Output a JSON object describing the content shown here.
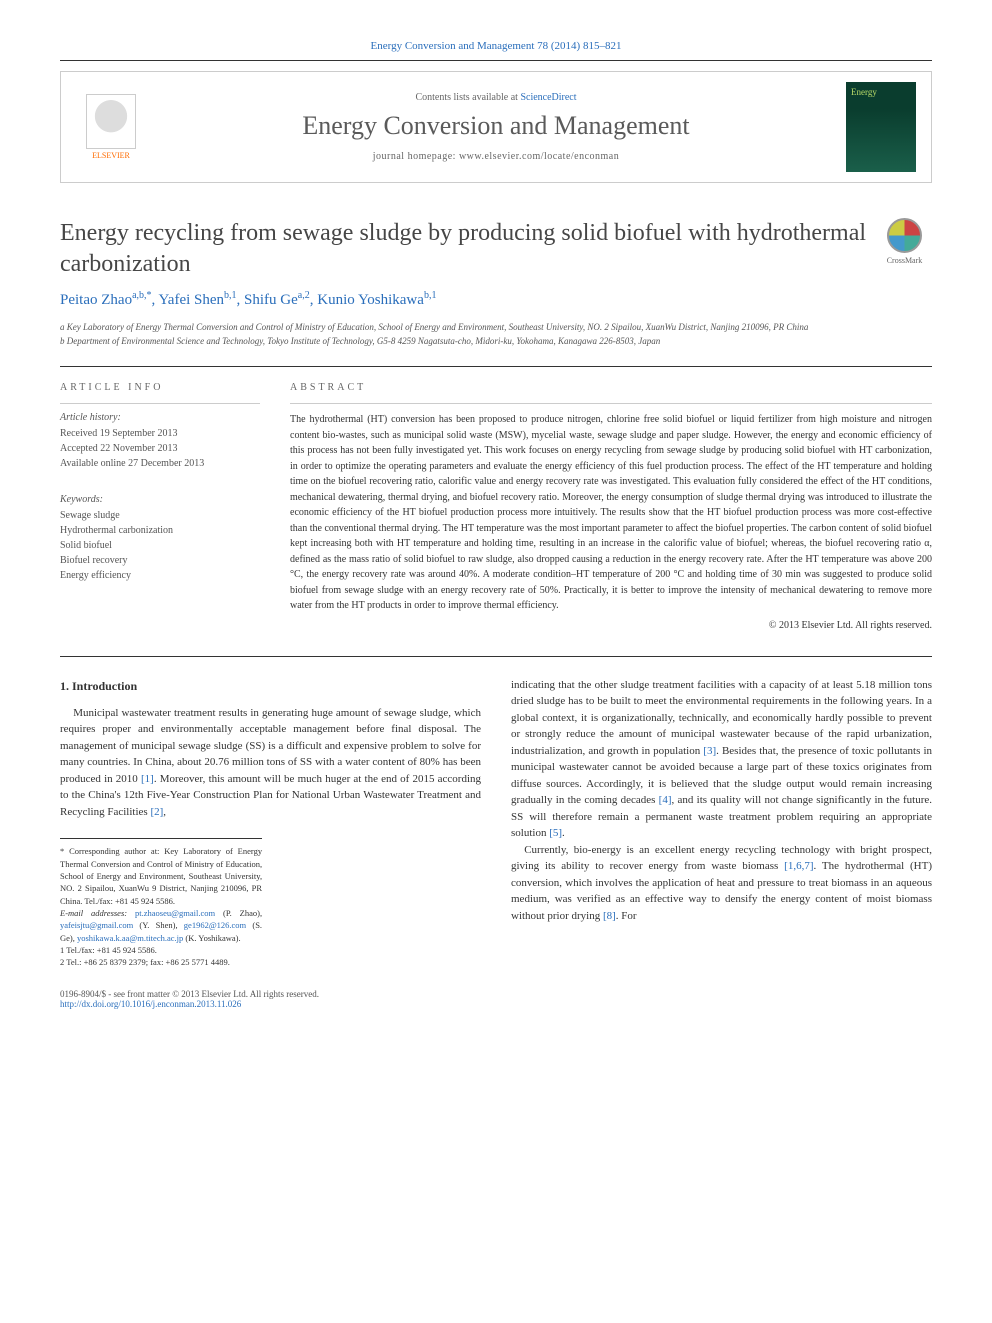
{
  "citation": "Energy Conversion and Management 78 (2014) 815–821",
  "header": {
    "contents_prefix": "Contents lists available at ",
    "contents_link": "ScienceDirect",
    "journal_name": "Energy Conversion and Management",
    "homepage_prefix": "journal homepage: ",
    "homepage_url": "www.elsevier.com/locate/enconman",
    "publisher": "ELSEVIER",
    "cover_text": "Energy"
  },
  "article": {
    "title": "Energy recycling from sewage sludge by producing solid biofuel with hydrothermal carbonization",
    "crossmark": "CrossMark",
    "authors_html": "Peitao Zhao",
    "author_sup1": "a,b,",
    "author_star": "*",
    "author2": ", Yafei Shen",
    "author_sup2": "b,1",
    "author3": ", Shifu Ge",
    "author_sup3": "a,2",
    "author4": ", Kunio Yoshikawa",
    "author_sup4": "b,1",
    "affil_a": "a Key Laboratory of Energy Thermal Conversion and Control of Ministry of Education, School of Energy and Environment, Southeast University, NO. 2 Sipailou, XuanWu District, Nanjing 210096, PR China",
    "affil_b": "b Department of Environmental Science and Technology, Tokyo Institute of Technology, G5-8 4259 Nagatsuta-cho, Midori-ku, Yokohama, Kanagawa 226-8503, Japan"
  },
  "info": {
    "header": "ARTICLE INFO",
    "history_label": "Article history:",
    "received": "Received 19 September 2013",
    "accepted": "Accepted 22 November 2013",
    "online": "Available online 27 December 2013",
    "keywords_label": "Keywords:",
    "keywords": [
      "Sewage sludge",
      "Hydrothermal carbonization",
      "Solid biofuel",
      "Biofuel recovery",
      "Energy efficiency"
    ]
  },
  "abstract": {
    "header": "ABSTRACT",
    "text": "The hydrothermal (HT) conversion has been proposed to produce nitrogen, chlorine free solid biofuel or liquid fertilizer from high moisture and nitrogen content bio-wastes, such as municipal solid waste (MSW), mycelial waste, sewage sludge and paper sludge. However, the energy and economic efficiency of this process has not been fully investigated yet. This work focuses on energy recycling from sewage sludge by producing solid biofuel with HT carbonization, in order to optimize the operating parameters and evaluate the energy efficiency of this fuel production process. The effect of the HT temperature and holding time on the biofuel recovering ratio, calorific value and energy recovery rate was investigated. This evaluation fully considered the effect of the HT conditions, mechanical dewatering, thermal drying, and biofuel recovery ratio. Moreover, the energy consumption of sludge thermal drying was introduced to illustrate the economic efficiency of the HT biofuel production process more intuitively. The results show that the HT biofuel production process was more cost-effective than the conventional thermal drying. The HT temperature was the most important parameter to affect the biofuel properties. The carbon content of solid biofuel kept increasing both with HT temperature and holding time, resulting in an increase in the calorific value of biofuel; whereas, the biofuel recovering ratio α, defined as the mass ratio of solid biofuel to raw sludge, also dropped causing a reduction in the energy recovery rate. After the HT temperature was above 200 °C, the energy recovery rate was around 40%. A moderate condition–HT temperature of 200 °C and holding time of 30 min was suggested to produce solid biofuel from sewage sludge with an energy recovery rate of 50%. Practically, it is better to improve the intensity of mechanical dewatering to remove more water from the HT products in order to improve thermal efficiency.",
    "copyright": "© 2013 Elsevier Ltd. All rights reserved."
  },
  "body": {
    "sec1_heading": "1. Introduction",
    "col1_p1": "Municipal wastewater treatment results in generating huge amount of sewage sludge, which requires proper and environmentally acceptable management before final disposal. The management of municipal sewage sludge (SS) is a difficult and expensive problem to solve for many countries. In China, about 20.76 million tons of SS with a water content of 80% has been produced in 2010 [1]. Moreover, this amount will be much huger at the end of 2015 according to the China's 12th Five-Year Construction Plan for National Urban Wastewater Treatment and Recycling Facilities [2],",
    "col2_p1": "indicating that the other sludge treatment facilities with a capacity of at least 5.18 million tons dried sludge has to be built to meet the environmental requirements in the following years. In a global context, it is organizationally, technically, and economically hardly possible to prevent or strongly reduce the amount of municipal wastewater because of the rapid urbanization, industrialization, and growth in population [3]. Besides that, the presence of toxic pollutants in municipal wastewater cannot be avoided because a large part of these toxics originates from diffuse sources. Accordingly, it is believed that the sludge output would remain increasing gradually in the coming decades [4], and its quality will not change significantly in the future. SS will therefore remain a permanent waste treatment problem requiring an appropriate solution [5].",
    "col2_p2": "Currently, bio-energy is an excellent energy recycling technology with bright prospect, giving its ability to recover energy from waste biomass [1,6,7]. The hydrothermal (HT) conversion, which involves the application of heat and pressure to treat biomass in an aqueous medium, was verified as an effective way to densify the energy content of moist biomass without prior drying [8]. For"
  },
  "footnotes": {
    "corr": "* Corresponding author at: Key Laboratory of Energy Thermal Conversion and Control of Ministry of Education, School of Energy and Environment, Southeast University, NO. 2 Sipailou, XuanWu 9 District, Nanjing 210096, PR China. Tel./fax: +81 45 924 5586.",
    "email_label": "E-mail addresses: ",
    "email1": "pt.zhaoseu@gmail.com",
    "email1_name": " (P. Zhao), ",
    "email2": "yafeisjtu@gmail.com",
    "email2_name": " (Y. Shen), ",
    "email3": "ge1962@126.com",
    "email3_name": " (S. Ge), ",
    "email4": "yoshikawa.k.aa@m.titech.ac.jp",
    "email4_name": " (K. Yoshikawa).",
    "note1": "1 Tel./fax: +81 45 924 5586.",
    "note2": "2 Tel.: +86 25 8379 2379; fax: +86 25 5771 4489."
  },
  "footer": {
    "issn": "0196-8904/$ - see front matter © 2013 Elsevier Ltd. All rights reserved.",
    "doi": "http://dx.doi.org/10.1016/j.enconman.2013.11.026"
  },
  "colors": {
    "link": "#2a6ebb",
    "text": "#333333",
    "heading": "#464646"
  }
}
